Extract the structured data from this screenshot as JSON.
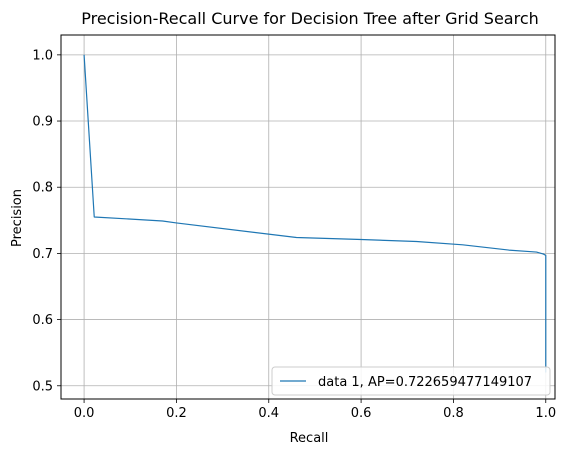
{
  "chart_data": {
    "type": "line",
    "title": "Precision-Recall Curve for Decision Tree after Grid Search",
    "xlabel": "Recall",
    "ylabel": "Precision",
    "xlim": [
      -0.05,
      1.02
    ],
    "ylim": [
      0.48,
      1.03
    ],
    "xticks": [
      0.0,
      0.2,
      0.4,
      0.6,
      0.8,
      1.0
    ],
    "yticks": [
      0.5,
      0.6,
      0.7,
      0.8,
      0.9,
      1.0
    ],
    "xtick_labels": [
      "0.0",
      "0.2",
      "0.4",
      "0.6",
      "0.8",
      "1.0"
    ],
    "ytick_labels": [
      "0.5",
      "0.6",
      "0.7",
      "0.8",
      "0.9",
      "1.0"
    ],
    "grid": true,
    "legend_position": "lower-right",
    "series": [
      {
        "name": "data 1, AP=0.722659477149107",
        "color": "#1f77b4",
        "x": [
          0.0,
          0.022,
          0.17,
          0.2,
          0.46,
          0.6,
          0.72,
          0.82,
          0.92,
          0.98,
          0.995,
          1.0,
          1.0
        ],
        "y": [
          1.0,
          0.755,
          0.749,
          0.746,
          0.724,
          0.721,
          0.718,
          0.713,
          0.705,
          0.702,
          0.699,
          0.697,
          0.52
        ]
      }
    ]
  }
}
